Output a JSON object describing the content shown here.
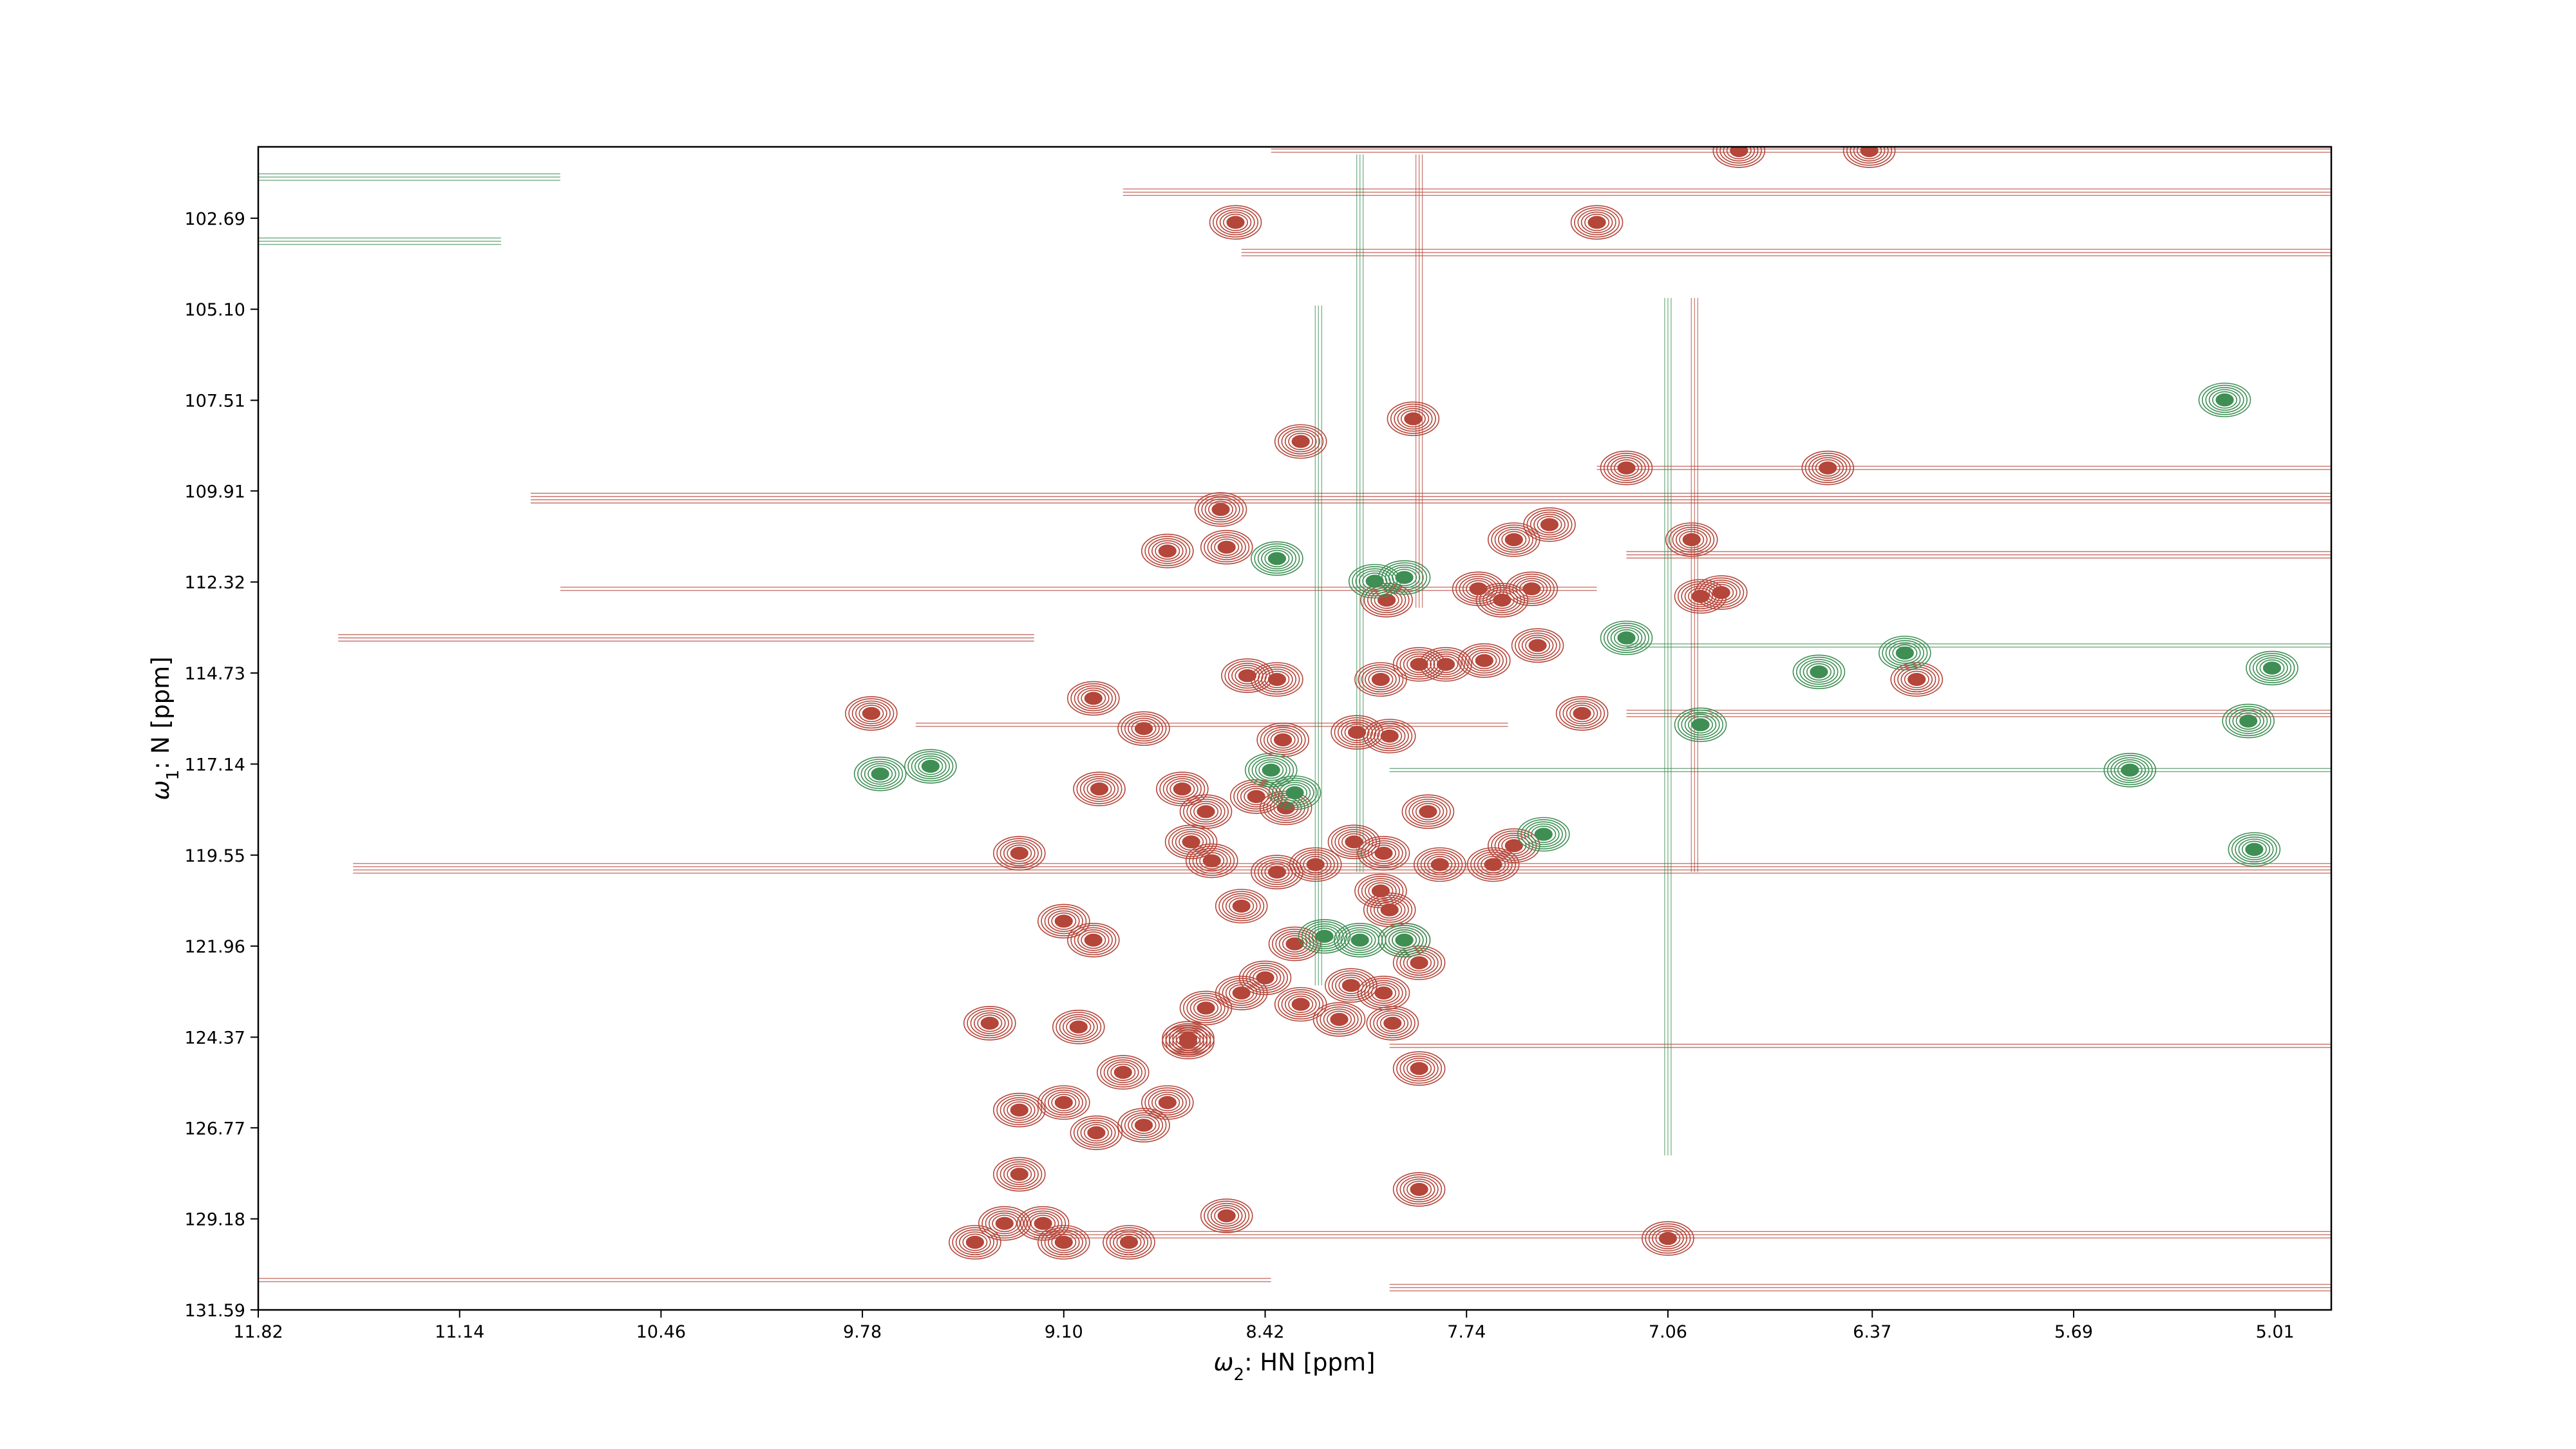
{
  "chart_data": {
    "type": "contour",
    "xlabel": "ω2: HN [ppm]",
    "ylabel": "ω1: N [ppm]",
    "x_label_parts": {
      "sym": "ω",
      "sub": "2",
      "rest": ": HN [ppm]"
    },
    "y_label_parts": {
      "sym": "ω",
      "sub": "1",
      "rest": ": N [ppm]"
    },
    "xlim": [
      11.82,
      4.82
    ],
    "ylim": [
      131.59,
      100.8
    ],
    "x_ticks": [
      "11.82",
      "11.14",
      "10.46",
      "9.78",
      "9.10",
      "8.42",
      "7.74",
      "7.06",
      "6.37",
      "5.69",
      "5.01"
    ],
    "y_ticks": [
      "102.69",
      "105.10",
      "107.51",
      "109.91",
      "112.32",
      "114.73",
      "117.14",
      "119.55",
      "121.96",
      "124.37",
      "126.77",
      "129.18",
      "131.59"
    ],
    "colors": {
      "positive": "#b5463a",
      "negative": "#3f8f55",
      "frame": "#000000"
    },
    "series": [
      {
        "name": "positive",
        "peaks": [
          [
            8.52,
            102.8
          ],
          [
            7.3,
            102.8
          ],
          [
            6.82,
            100.9
          ],
          [
            6.38,
            100.9
          ],
          [
            7.92,
            108.0
          ],
          [
            8.3,
            108.6
          ],
          [
            7.2,
            109.3
          ],
          [
            6.52,
            109.3
          ],
          [
            8.57,
            110.4
          ],
          [
            8.75,
            111.5
          ],
          [
            8.55,
            111.4
          ],
          [
            7.58,
            111.2
          ],
          [
            7.46,
            110.8
          ],
          [
            6.98,
            111.2
          ],
          [
            7.7,
            112.5
          ],
          [
            7.62,
            112.8
          ],
          [
            7.52,
            112.5
          ],
          [
            8.01,
            112.8
          ],
          [
            6.95,
            112.7
          ],
          [
            6.88,
            112.6
          ],
          [
            7.5,
            114.0
          ],
          [
            7.9,
            114.5
          ],
          [
            7.81,
            114.5
          ],
          [
            7.68,
            114.4
          ],
          [
            8.03,
            114.9
          ],
          [
            8.48,
            114.8
          ],
          [
            8.38,
            114.9
          ],
          [
            6.22,
            114.9
          ],
          [
            9.0,
            115.4
          ],
          [
            8.83,
            116.2
          ],
          [
            9.75,
            115.8
          ],
          [
            7.35,
            115.8
          ],
          [
            8.11,
            116.3
          ],
          [
            8.0,
            116.4
          ],
          [
            8.36,
            116.5
          ],
          [
            8.98,
            117.8
          ],
          [
            8.62,
            118.4
          ],
          [
            8.7,
            117.8
          ],
          [
            8.45,
            118.0
          ],
          [
            8.35,
            118.3
          ],
          [
            7.87,
            118.4
          ],
          [
            7.58,
            119.3
          ],
          [
            8.02,
            119.5
          ],
          [
            8.12,
            119.2
          ],
          [
            7.65,
            119.8
          ],
          [
            7.83,
            119.8
          ],
          [
            8.25,
            119.8
          ],
          [
            8.03,
            120.5
          ],
          [
            8.6,
            119.7
          ],
          [
            9.25,
            119.5
          ],
          [
            8.67,
            119.2
          ],
          [
            8.38,
            120.0
          ],
          [
            8.5,
            120.9
          ],
          [
            8.0,
            121.0
          ],
          [
            9.1,
            121.3
          ],
          [
            9.0,
            121.8
          ],
          [
            8.32,
            121.9
          ],
          [
            7.95,
            121.8
          ],
          [
            7.9,
            122.4
          ],
          [
            8.42,
            122.8
          ],
          [
            8.02,
            123.2
          ],
          [
            8.13,
            123.0
          ],
          [
            8.3,
            123.5
          ],
          [
            8.5,
            123.2
          ],
          [
            8.62,
            123.6
          ],
          [
            8.68,
            124.4
          ],
          [
            8.17,
            123.9
          ],
          [
            7.99,
            124.0
          ],
          [
            9.35,
            124.0
          ],
          [
            9.05,
            124.1
          ],
          [
            7.9,
            125.2
          ],
          [
            8.68,
            124.5
          ],
          [
            8.9,
            125.3
          ],
          [
            8.75,
            126.1
          ],
          [
            9.25,
            126.3
          ],
          [
            9.1,
            126.1
          ],
          [
            8.83,
            126.7
          ],
          [
            8.99,
            126.9
          ],
          [
            9.25,
            128.0
          ],
          [
            9.3,
            129.3
          ],
          [
            9.17,
            129.3
          ],
          [
            8.55,
            129.1
          ],
          [
            9.1,
            129.8
          ],
          [
            9.4,
            129.8
          ],
          [
            8.88,
            129.8
          ],
          [
            7.9,
            128.4
          ],
          [
            7.06,
            129.7
          ]
        ]
      },
      {
        "name": "negative",
        "peaks": [
          [
            5.02,
            114.6
          ],
          [
            5.1,
            116.0
          ],
          [
            5.5,
            117.3
          ],
          [
            5.08,
            119.4
          ],
          [
            5.18,
            107.5
          ],
          [
            8.38,
            111.7
          ],
          [
            8.05,
            112.3
          ],
          [
            7.95,
            112.2
          ],
          [
            9.55,
            117.2
          ],
          [
            9.72,
            117.4
          ],
          [
            8.4,
            117.3
          ],
          [
            8.32,
            117.9
          ],
          [
            8.22,
            121.7
          ],
          [
            8.1,
            121.8
          ],
          [
            7.95,
            121.8
          ],
          [
            7.48,
            119.0
          ],
          [
            7.2,
            113.8
          ],
          [
            6.55,
            114.7
          ],
          [
            6.26,
            114.2
          ],
          [
            6.95,
            116.1
          ]
        ]
      }
    ]
  }
}
